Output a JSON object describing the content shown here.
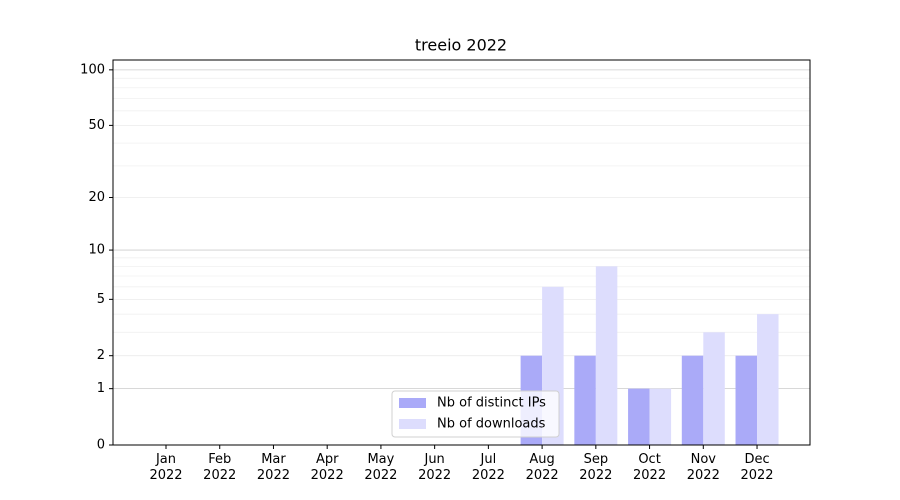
{
  "chart_data": {
    "type": "bar",
    "title": "treeio 2022",
    "categories": [
      "Jan\n2022",
      "Feb\n2022",
      "Mar\n2022",
      "Apr\n2022",
      "May\n2022",
      "Jun\n2022",
      "Jul\n2022",
      "Aug\n2022",
      "Sep\n2022",
      "Oct\n2022",
      "Nov\n2022",
      "Dec\n2022"
    ],
    "series": [
      {
        "name": "Nb of distinct IPs",
        "color": "#aaaaf8",
        "values": [
          0,
          0,
          0,
          0,
          0,
          0,
          0,
          2,
          2,
          1,
          2,
          2
        ]
      },
      {
        "name": "Nb of downloads",
        "color": "#ddddfd",
        "values": [
          0,
          0,
          0,
          0,
          0,
          0,
          0,
          6,
          8,
          1,
          3,
          4
        ]
      }
    ],
    "yscale": "log1p",
    "ylim": [
      0,
      113
    ],
    "yticks": [
      0,
      1,
      2,
      5,
      10,
      20,
      50,
      100
    ],
    "yminorticks": [
      3,
      4,
      6,
      7,
      8,
      9,
      30,
      40,
      60,
      70,
      80,
      90
    ],
    "grid": true,
    "legend": "lower center"
  }
}
